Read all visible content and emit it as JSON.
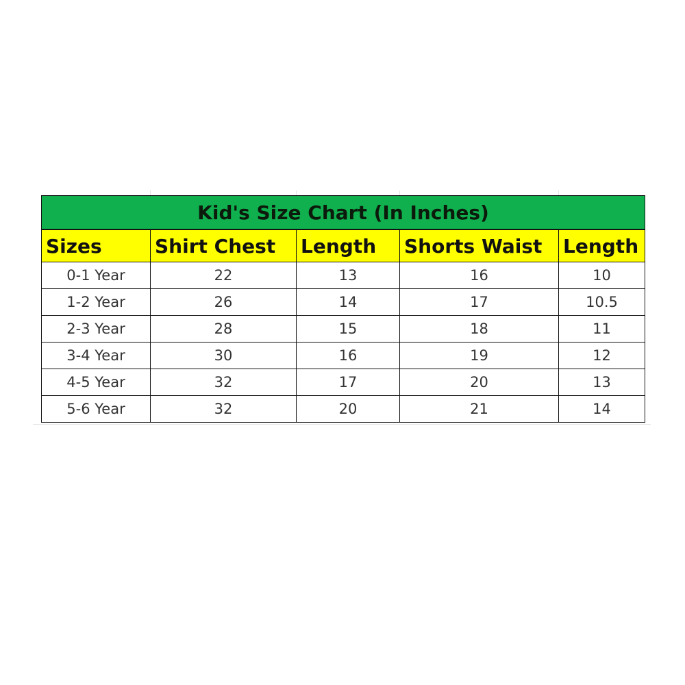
{
  "title": "Kid's Size Chart (In Inches)",
  "colors": {
    "title_bg": "#10b04f",
    "header_bg": "#ffff00"
  },
  "columns": [
    "Sizes",
    "Shirt Chest",
    "Length",
    "Shorts Waist",
    "Length"
  ],
  "rows": [
    [
      "0-1 Year",
      "22",
      "13",
      "16",
      "10"
    ],
    [
      "1-2 Year",
      "26",
      "14",
      "17",
      "10.5"
    ],
    [
      "2-3 Year",
      "28",
      "15",
      "18",
      "11"
    ],
    [
      "3-4 Year",
      "30",
      "16",
      "19",
      "12"
    ],
    [
      "4-5 Year",
      "32",
      "17",
      "20",
      "13"
    ],
    [
      "5-6 Year",
      "32",
      "20",
      "21",
      "14"
    ]
  ]
}
